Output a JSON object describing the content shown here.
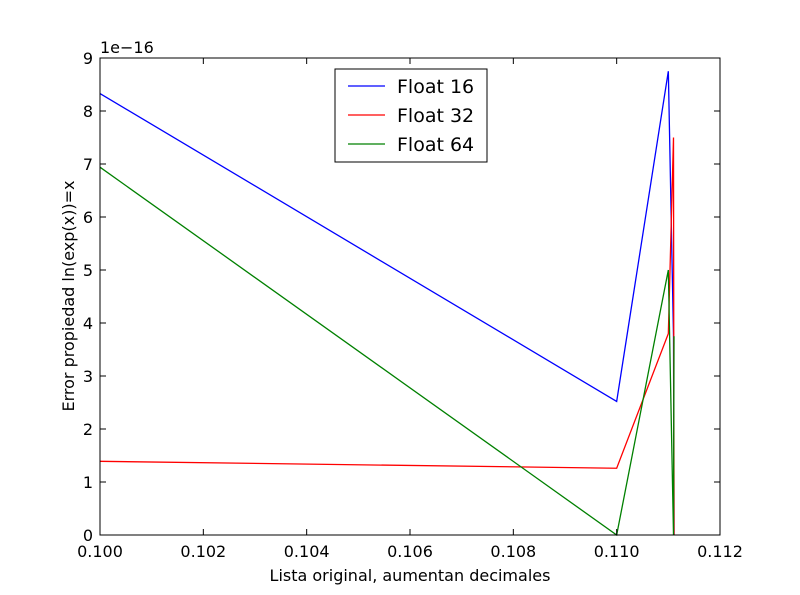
{
  "chart_data": {
    "type": "line",
    "xlabel": "Lista original, aumentan decimales",
    "ylabel": "Error propiedad ln(exp(x))=x",
    "offset_label": "1e−16",
    "xlim": [
      0.1,
      0.112
    ],
    "ylim": [
      0,
      9
    ],
    "xticks": [
      "0.100",
      "0.102",
      "0.104",
      "0.106",
      "0.108",
      "0.110",
      "0.112"
    ],
    "yticks": [
      "0",
      "1",
      "2",
      "3",
      "4",
      "5",
      "6",
      "7",
      "8",
      "9"
    ],
    "grid": false,
    "legend_position": "top-center",
    "series": [
      {
        "name": "Float 16",
        "color": "#0000ff",
        "x": [
          0.1,
          0.11,
          0.111,
          0.1111,
          0.11111
        ],
        "y": [
          8.33,
          2.52,
          8.75,
          3.75,
          0.0
        ]
      },
      {
        "name": "Float 32",
        "color": "#ff0000",
        "x": [
          0.1,
          0.11,
          0.111,
          0.1111,
          0.11111
        ],
        "y": [
          1.39,
          1.26,
          3.8,
          7.5,
          0.0
        ]
      },
      {
        "name": "Float 64",
        "color": "#008000",
        "x": [
          0.1,
          0.11,
          0.111,
          0.1111,
          0.11111
        ],
        "y": [
          6.94,
          0.0,
          5.0,
          0.0,
          3.75
        ]
      }
    ]
  }
}
